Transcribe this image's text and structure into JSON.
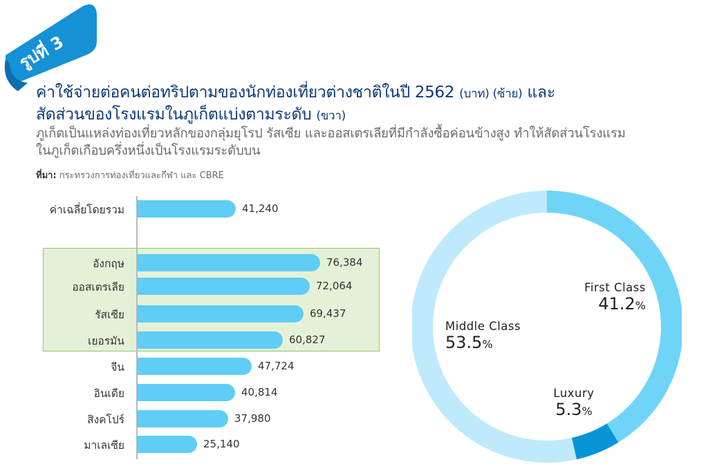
{
  "figure_label": "รูปที่ 3",
  "title": {
    "line1_main": "ค่าใช้จ่ายต่อคนต่อทริปตามของนักท่องเที่ยวต่างชาติในปี 2562",
    "line1_unit": "(บาท) (ซ้าย)",
    "line1_end": "และ",
    "line2_main": "สัดส่วนของโรงแรมในภูเก็ตแบ่งตามระดับ",
    "line2_unit": "(ขวา)"
  },
  "subtitle_line1": "ภูเก็ตเป็นแหล่งท่องเที่ยวหลักของกลุ่มยุโรป รัสเซีย และออสเตรเลียที่มีกำลังซื้อค่อนข้างสูง ทำให้สัดส่วนโรงแรม",
  "subtitle_line2": "ในภูเก็ตเกือบครึ่งหนึ่งเป็นโรงแรมระดับบน",
  "source_label": "ที่มา:",
  "source_text": "กระทรวงการท่องเที่ยวและกีฬา และ CBRE",
  "colors": {
    "bar": "#5fcdf5",
    "highlight_fill": "#e4f1d6",
    "highlight_border": "#8cc66a",
    "title": "#0b3a78",
    "ribbon": "#1591d6",
    "first_class": "#6fd4f8",
    "luxury": "#0795d6",
    "middle_class": "#bfeafb"
  },
  "chart_data": [
    {
      "type": "bar",
      "orientation": "horizontal",
      "categories": [
        "ค่าเฉลี่ยโดยรวม",
        "อังกฤษ",
        "ออสเตรเลีย",
        "รัสเซีย",
        "เยอรมัน",
        "จีน",
        "อินเดีย",
        "สิงคโปร์",
        "มาเลเซีย"
      ],
      "values": [
        41240,
        76384,
        72064,
        69437,
        60827,
        47724,
        40814,
        37980,
        25140
      ],
      "labels": [
        "41,240",
        "76,384",
        "72,064",
        "69,437",
        "60,827",
        "47,724",
        "40,814",
        "37,980",
        "25,140"
      ],
      "highlighted": [
        "อังกฤษ",
        "ออสเตรเลีย",
        "รัสเซีย",
        "เยอรมัน"
      ],
      "grid": false
    },
    {
      "type": "pie",
      "donut": true,
      "slices": [
        {
          "name": "First Class",
          "value": 41.2,
          "color": "#6fd4f8"
        },
        {
          "name": "Luxury",
          "value": 5.3,
          "color": "#0795d6"
        },
        {
          "name": "Middle Class",
          "value": 53.5,
          "color": "#bfeafb"
        }
      ]
    }
  ]
}
